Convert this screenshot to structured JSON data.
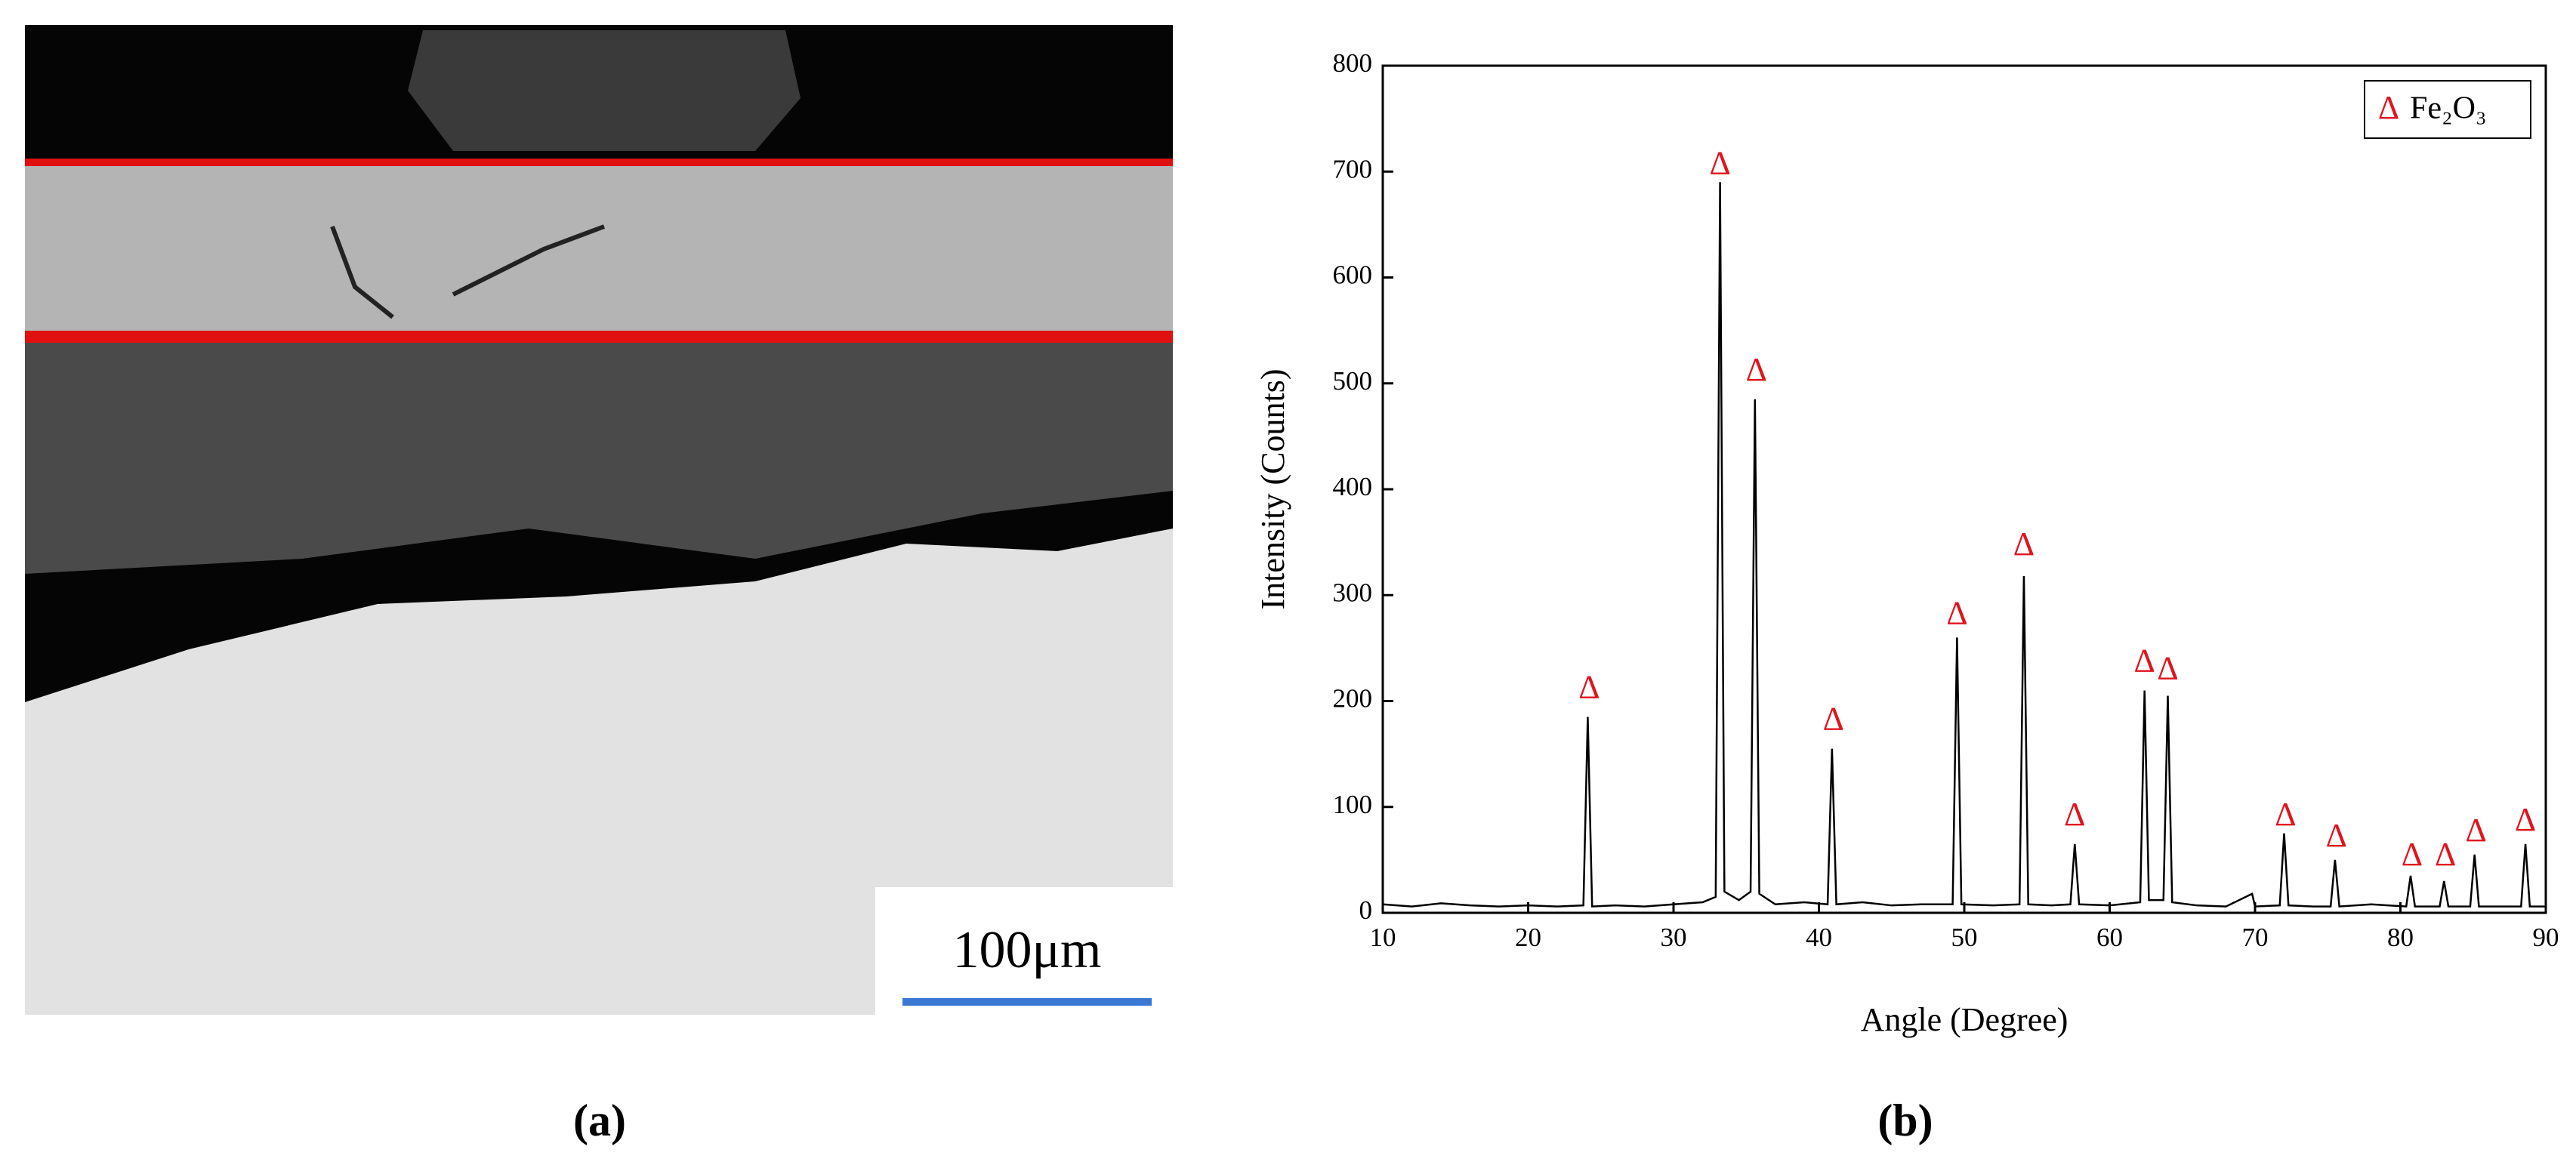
{
  "panels": {
    "a": {
      "label": "(a)",
      "scale_bar": "100μm"
    },
    "b": {
      "label": "(b)"
    }
  },
  "chart_data": {
    "type": "line",
    "xlabel": "Angle (Degree)",
    "ylabel": "Intensity (Counts)",
    "x": [
      10,
      12,
      14,
      16,
      18,
      20,
      22,
      23.8,
      24.1,
      24.4,
      26,
      28,
      30,
      32,
      32.9,
      33.2,
      33.5,
      34.5,
      35.3,
      35.6,
      35.9,
      37,
      39,
      40.6,
      40.9,
      41.2,
      43,
      45,
      47,
      49.2,
      49.5,
      49.8,
      52,
      53.8,
      54.1,
      54.4,
      56,
      57.3,
      57.6,
      57.9,
      60,
      62.1,
      62.4,
      62.7,
      63.7,
      64.0,
      64.3,
      66,
      68,
      69.8,
      70,
      71.7,
      72.0,
      72.3,
      74,
      75.2,
      75.5,
      75.8,
      78,
      80.4,
      80.7,
      81.0,
      82.7,
      83.0,
      83.3,
      84.8,
      85.1,
      85.4,
      87,
      88.3,
      88.6,
      88.9,
      90
    ],
    "series": [
      {
        "color": "#000000",
        "values": [
          8,
          6,
          9,
          7,
          6,
          7,
          6,
          7,
          185,
          6,
          7,
          6,
          8,
          10,
          15,
          690,
          20,
          12,
          20,
          485,
          18,
          8,
          10,
          8,
          155,
          8,
          10,
          7,
          8,
          8,
          260,
          8,
          7,
          8,
          318,
          8,
          7,
          8,
          65,
          8,
          7,
          10,
          210,
          12,
          12,
          205,
          10,
          7,
          6,
          18,
          6,
          7,
          75,
          7,
          6,
          6,
          50,
          6,
          8,
          6,
          35,
          6,
          6,
          30,
          6,
          6,
          55,
          6,
          6,
          6,
          65,
          6,
          6
        ]
      }
    ],
    "peak_markers": {
      "label": "Δ",
      "color": "#e0141e",
      "x": [
        24.2,
        33.2,
        35.7,
        41.0,
        49.5,
        54.1,
        57.6,
        62.4,
        64.0,
        72.1,
        75.6,
        80.8,
        83.1,
        85.2,
        88.6
      ],
      "y": [
        210,
        705,
        510,
        180,
        280,
        345,
        90,
        235,
        228,
        90,
        70,
        52,
        52,
        75,
        85
      ]
    },
    "legend": {
      "symbol": "Δ",
      "label": "Fe₂O₃",
      "position": "upper right"
    },
    "xlim": [
      10,
      90
    ],
    "xticks": [
      10,
      20,
      30,
      40,
      50,
      60,
      70,
      80,
      90
    ],
    "ylim": [
      0,
      800
    ],
    "yticks": [
      0,
      100,
      200,
      300,
      400,
      500,
      600,
      700,
      800
    ]
  }
}
